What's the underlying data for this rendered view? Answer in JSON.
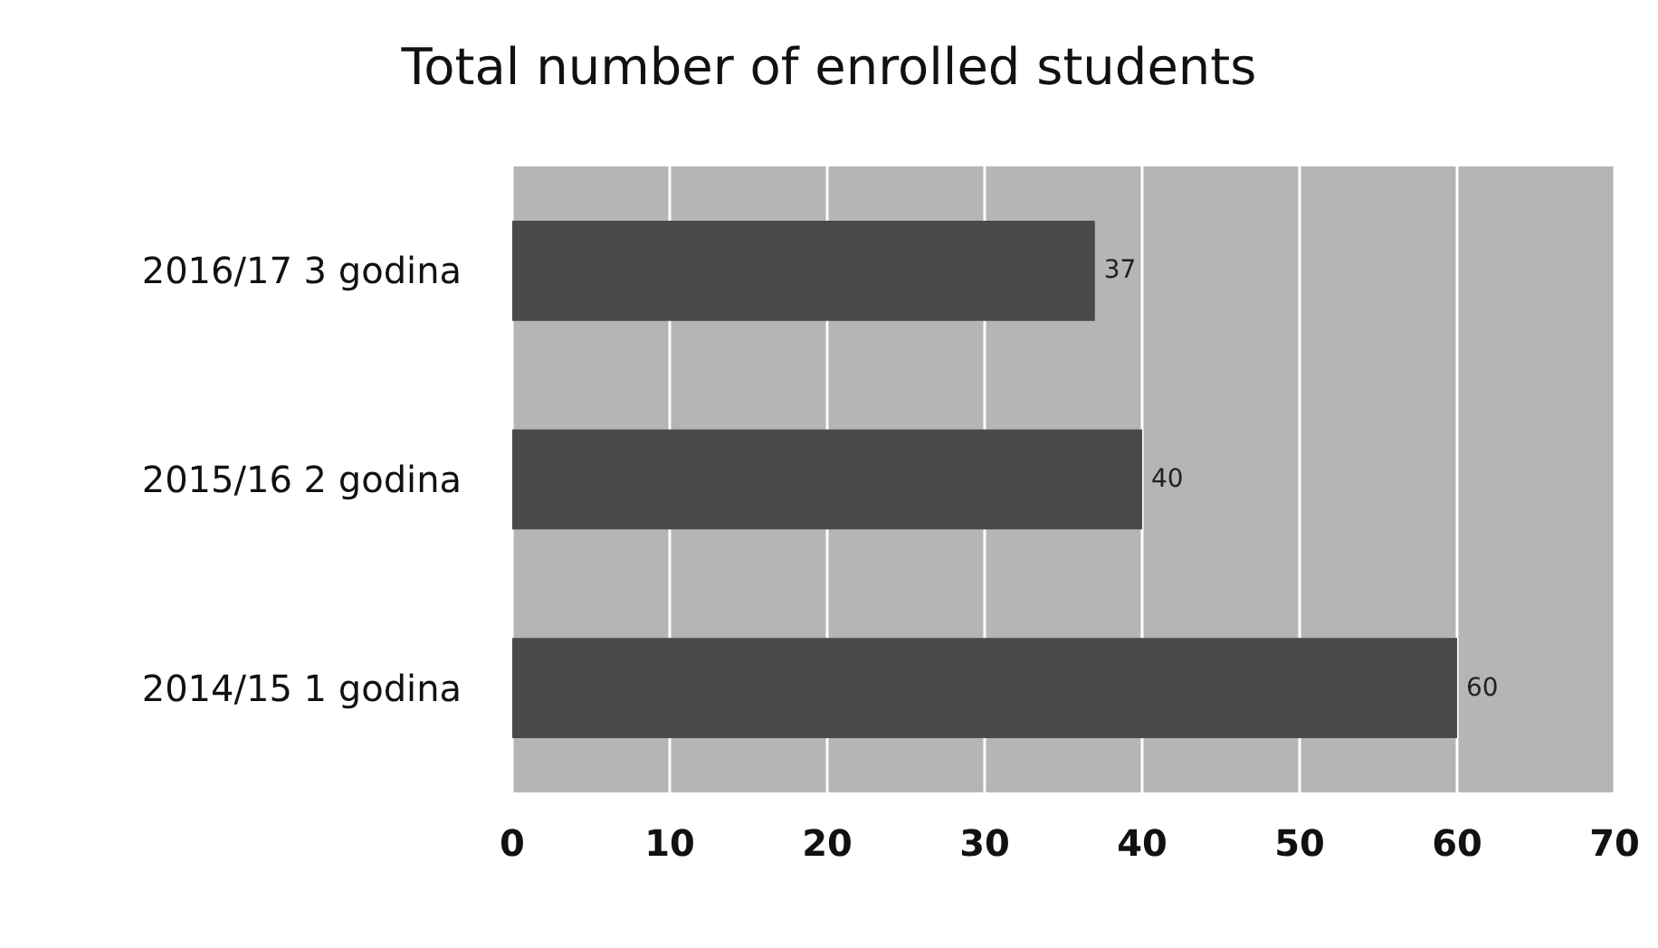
{
  "chart_data": {
    "type": "bar",
    "title": "Total number of enrolled students",
    "orientation": "horizontal",
    "categories": [
      "2016/17 3 godina",
      "2015/16 2 godina",
      "2014/15 1 godina"
    ],
    "values": [
      37,
      40,
      60
    ],
    "color": "#4a4a4a",
    "xlim": [
      0,
      70
    ],
    "xticks": [
      0,
      10,
      20,
      30,
      40,
      50,
      60,
      70
    ],
    "grid": "x",
    "data_labels": true
  }
}
